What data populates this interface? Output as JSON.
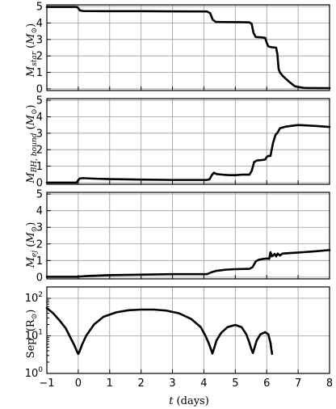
{
  "chart_data": [
    {
      "type": "line",
      "ylabel": "M_star (M_⊙)",
      "xlim": [
        -1,
        8
      ],
      "ylim": [
        0,
        5
      ],
      "yticks": [
        "0",
        "1",
        "2",
        "3",
        "4",
        "5"
      ],
      "grid": true,
      "series": [
        {
          "points": [
            [
              -1,
              4.98
            ],
            [
              -0.05,
              4.98
            ],
            [
              0.0,
              4.9
            ],
            [
              0.05,
              4.77
            ],
            [
              0.15,
              4.73
            ],
            [
              1,
              4.72
            ],
            [
              2,
              4.72
            ],
            [
              3,
              4.71
            ],
            [
              4.1,
              4.7
            ],
            [
              4.2,
              4.6
            ],
            [
              4.28,
              4.2
            ],
            [
              4.38,
              4.07
            ],
            [
              4.6,
              4.06
            ],
            [
              5.2,
              4.05
            ],
            [
              5.45,
              4.04
            ],
            [
              5.52,
              3.95
            ],
            [
              5.58,
              3.4
            ],
            [
              5.65,
              3.15
            ],
            [
              5.8,
              3.13
            ],
            [
              5.95,
              3.1
            ],
            [
              6.0,
              2.8
            ],
            [
              6.05,
              2.58
            ],
            [
              6.15,
              2.53
            ],
            [
              6.3,
              2.5
            ],
            [
              6.34,
              2.1
            ],
            [
              6.38,
              1.2
            ],
            [
              6.42,
              1.0
            ],
            [
              6.5,
              0.8
            ],
            [
              6.7,
              0.45
            ],
            [
              6.9,
              0.15
            ],
            [
              7.2,
              0.05
            ],
            [
              8,
              0.04
            ]
          ]
        }
      ]
    },
    {
      "type": "line",
      "ylabel": "M_BH, bound (M_⊙)",
      "xlim": [
        -1,
        8
      ],
      "ylim": [
        0,
        5
      ],
      "yticks": [
        "0",
        "1",
        "2",
        "3",
        "4",
        "5"
      ],
      "grid": true,
      "series": [
        {
          "points": [
            [
              -1,
              0
            ],
            [
              -0.05,
              0.0
            ],
            [
              0.0,
              0.15
            ],
            [
              0.05,
              0.25
            ],
            [
              0.15,
              0.27
            ],
            [
              0.5,
              0.24
            ],
            [
              1,
              0.21
            ],
            [
              2,
              0.18
            ],
            [
              3,
              0.16
            ],
            [
              4.1,
              0.16
            ],
            [
              4.18,
              0.2
            ],
            [
              4.25,
              0.45
            ],
            [
              4.32,
              0.6
            ],
            [
              4.4,
              0.52
            ],
            [
              4.6,
              0.48
            ],
            [
              4.8,
              0.45
            ],
            [
              5.0,
              0.45
            ],
            [
              5.2,
              0.48
            ],
            [
              5.45,
              0.48
            ],
            [
              5.52,
              0.7
            ],
            [
              5.6,
              1.25
            ],
            [
              5.7,
              1.35
            ],
            [
              5.85,
              1.37
            ],
            [
              5.95,
              1.4
            ],
            [
              6.0,
              1.55
            ],
            [
              6.05,
              1.62
            ],
            [
              6.12,
              1.62
            ],
            [
              6.2,
              2.4
            ],
            [
              6.28,
              2.9
            ],
            [
              6.35,
              3.05
            ],
            [
              6.42,
              3.3
            ],
            [
              6.6,
              3.4
            ],
            [
              7.0,
              3.5
            ],
            [
              7.5,
              3.45
            ],
            [
              8,
              3.38
            ]
          ]
        }
      ]
    },
    {
      "type": "line",
      "ylabel": "M_ej (M_⊙)",
      "xlim": [
        -1,
        8
      ],
      "ylim": [
        0,
        5
      ],
      "yticks": [
        "0",
        "1",
        "2",
        "3",
        "4",
        "5"
      ],
      "grid": true,
      "series": [
        {
          "points": [
            [
              -1,
              0.02
            ],
            [
              -0.05,
              0.02
            ],
            [
              0.0,
              0.03
            ],
            [
              0.3,
              0.07
            ],
            [
              1,
              0.12
            ],
            [
              2,
              0.15
            ],
            [
              3,
              0.18
            ],
            [
              4.1,
              0.18
            ],
            [
              4.25,
              0.3
            ],
            [
              4.4,
              0.38
            ],
            [
              4.7,
              0.45
            ],
            [
              5.0,
              0.48
            ],
            [
              5.45,
              0.5
            ],
            [
              5.55,
              0.6
            ],
            [
              5.65,
              0.95
            ],
            [
              5.75,
              1.05
            ],
            [
              5.9,
              1.1
            ],
            [
              6.0,
              1.12
            ],
            [
              6.08,
              1.1
            ],
            [
              6.12,
              1.5
            ],
            [
              6.16,
              1.25
            ],
            [
              6.2,
              1.3
            ],
            [
              6.25,
              1.4
            ],
            [
              6.3,
              1.25
            ],
            [
              6.35,
              1.42
            ],
            [
              6.42,
              1.3
            ],
            [
              6.5,
              1.42
            ],
            [
              7,
              1.48
            ],
            [
              7.5,
              1.55
            ],
            [
              8,
              1.63
            ]
          ]
        }
      ]
    },
    {
      "type": "line",
      "ylabel": "Sep. (R_⊙)",
      "xlim": [
        -1,
        8
      ],
      "ylim": [
        1,
        200
      ],
      "yscale": "log",
      "yticks": [
        "10^0",
        "10^1",
        "10^2"
      ],
      "grid": true,
      "series": [
        {
          "points": [
            [
              -1,
              55
            ],
            [
              -0.8,
              40
            ],
            [
              -0.6,
              26
            ],
            [
              -0.4,
              16
            ],
            [
              -0.25,
              9
            ],
            [
              -0.12,
              5.5
            ],
            [
              -0.04,
              3.8
            ],
            [
              0,
              3.3
            ],
            [
              0.04,
              3.8
            ],
            [
              0.12,
              5.8
            ],
            [
              0.25,
              10
            ],
            [
              0.5,
              20
            ],
            [
              0.8,
              32
            ],
            [
              1.2,
              42
            ],
            [
              1.6,
              48
            ],
            [
              2.0,
              50
            ],
            [
              2.4,
              50
            ],
            [
              2.8,
              47
            ],
            [
              3.2,
              40
            ],
            [
              3.6,
              28
            ],
            [
              3.9,
              17
            ],
            [
              4.05,
              10
            ],
            [
              4.15,
              6.5
            ],
            [
              4.22,
              4.5
            ],
            [
              4.27,
              3.4
            ],
            [
              4.32,
              4.5
            ],
            [
              4.4,
              7.5
            ],
            [
              4.55,
              12
            ],
            [
              4.75,
              17
            ],
            [
              5.0,
              19.5
            ],
            [
              5.2,
              17
            ],
            [
              5.35,
              11
            ],
            [
              5.45,
              6.5
            ],
            [
              5.52,
              4.2
            ],
            [
              5.56,
              3.5
            ],
            [
              5.6,
              4.5
            ],
            [
              5.68,
              7.5
            ],
            [
              5.8,
              11
            ],
            [
              5.95,
              12.5
            ],
            [
              6.05,
              11
            ],
            [
              6.12,
              6.5
            ],
            [
              6.17,
              3.3
            ]
          ]
        }
      ]
    }
  ],
  "x_axis": {
    "label": "t (days)",
    "ticks": [
      "−1",
      "0",
      "1",
      "2",
      "3",
      "4",
      "5",
      "6",
      "7",
      "8"
    ]
  }
}
